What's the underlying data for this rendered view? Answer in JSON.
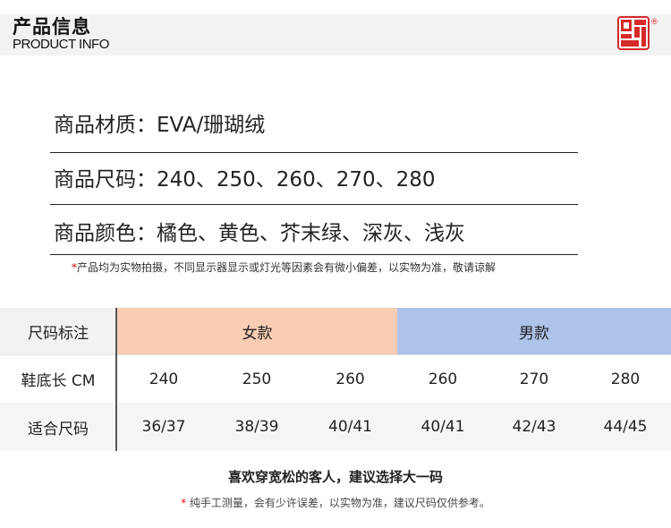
{
  "header": {
    "title_cn": "产品信息",
    "title_en": "PRODUCT INFO",
    "logo_color": "#d42a2a",
    "reg_mark": "®"
  },
  "info": {
    "material": "商品材质：EVA/珊瑚绒",
    "sizes": "商品尺码：240、250、260、270、280",
    "colors": "商品颜色：橘色、黄色、芥末绿、深灰、浅灰"
  },
  "note_star": "*",
  "note_text": "产品均为实物拍摄，不同显示器显示或灯光等因素会有微小偏差，以实物为准，敬请谅解",
  "size_table": {
    "header_label": "尺码标注",
    "women_label": "女款",
    "men_label": "男款",
    "women_color": "#f8cdb3",
    "men_color": "#aec3ea",
    "sole_label": "鞋底长 CM",
    "sole_lengths": [
      "240",
      "250",
      "260",
      "260",
      "270",
      "280"
    ],
    "fit_label": "适合尺码",
    "fit_sizes": [
      "36/37",
      "38/39",
      "40/41",
      "40/41",
      "42/43",
      "44/45"
    ]
  },
  "footer": {
    "main": "喜欢穿宽松的客人，建议选择大一码",
    "note_star": "*",
    "note": " 纯手工测量，会有少许误差，以实物为准，建议尺码仅供参考。"
  }
}
